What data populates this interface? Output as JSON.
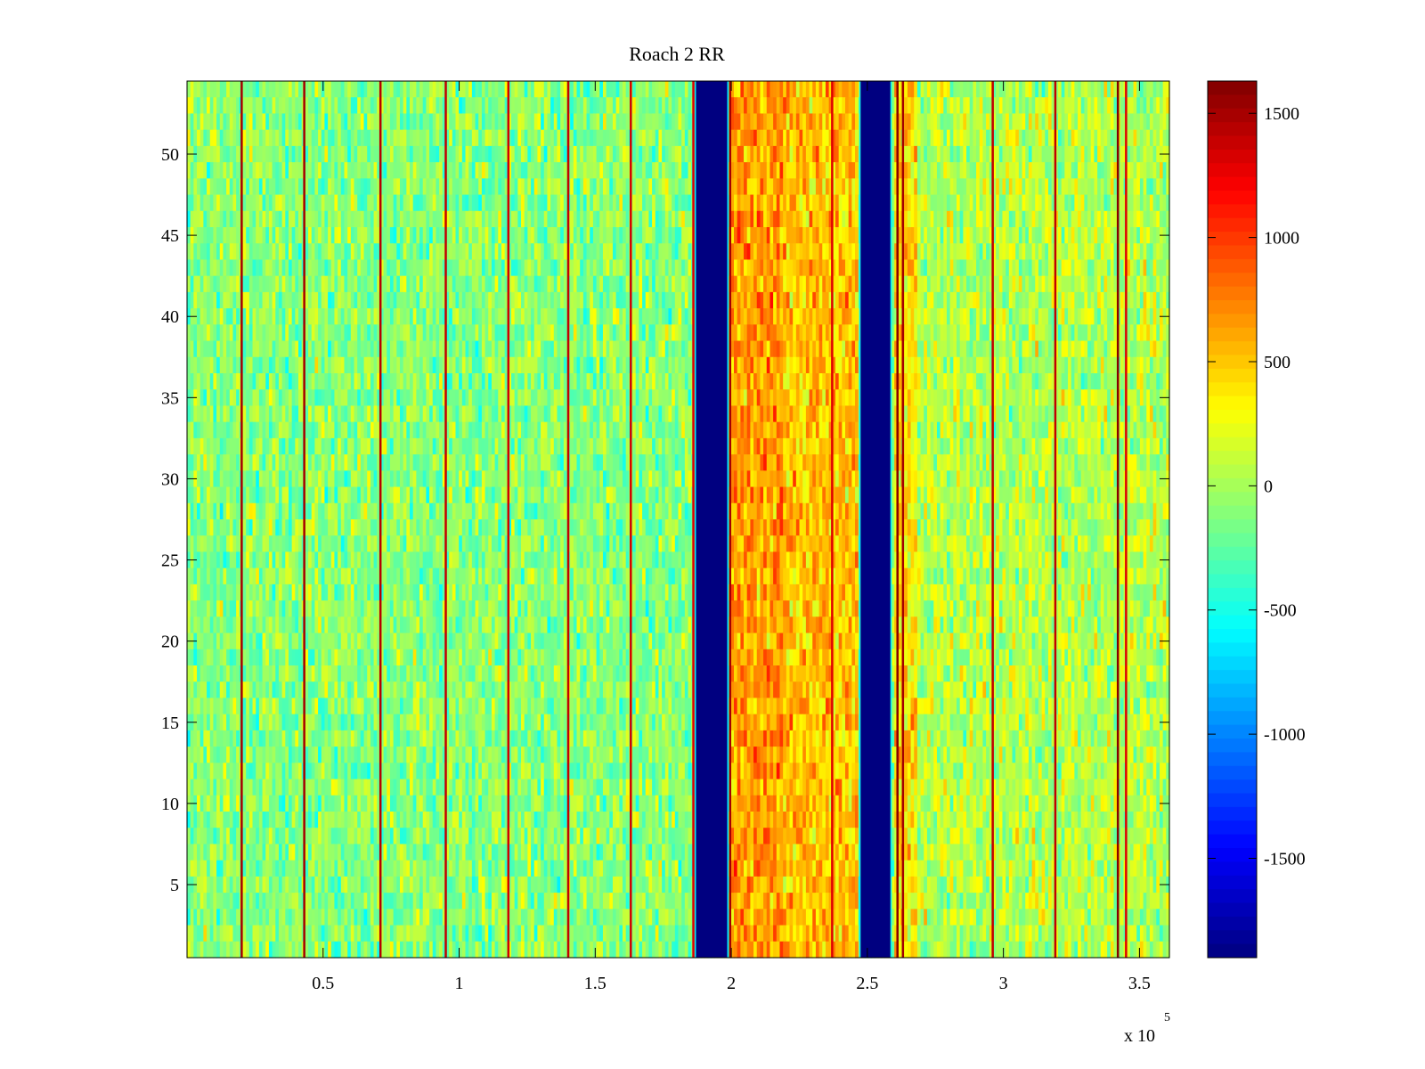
{
  "chart_data": {
    "type": "heatmap",
    "title": "Roach 2 RR",
    "xlabel": "",
    "ylabel": "",
    "x_range": [
      0,
      361000
    ],
    "y_range": [
      0.5,
      54.5
    ],
    "rows": 54,
    "x_ticks": [
      {
        "value": 50000,
        "label": "0.5"
      },
      {
        "value": 100000,
        "label": "1"
      },
      {
        "value": 150000,
        "label": "1.5"
      },
      {
        "value": 200000,
        "label": "2"
      },
      {
        "value": 250000,
        "label": "2.5"
      },
      {
        "value": 300000,
        "label": "3"
      },
      {
        "value": 350000,
        "label": "3.5"
      }
    ],
    "x_exponent": {
      "base": "x 10",
      "power": "5"
    },
    "y_ticks": [
      {
        "value": 5,
        "label": "5"
      },
      {
        "value": 10,
        "label": "10"
      },
      {
        "value": 15,
        "label": "15"
      },
      {
        "value": 20,
        "label": "20"
      },
      {
        "value": 25,
        "label": "25"
      },
      {
        "value": 30,
        "label": "30"
      },
      {
        "value": 35,
        "label": "35"
      },
      {
        "value": 40,
        "label": "40"
      },
      {
        "value": 45,
        "label": "45"
      },
      {
        "value": 50,
        "label": "50"
      }
    ],
    "colorbar": {
      "colormap": "jet",
      "range": [
        -1900,
        1630
      ],
      "ticks": [
        {
          "value": 1500,
          "label": "1500"
        },
        {
          "value": 1000,
          "label": "1000"
        },
        {
          "value": 500,
          "label": "500"
        },
        {
          "value": 0,
          "label": "0"
        },
        {
          "value": -500,
          "label": "-500"
        },
        {
          "value": -1000,
          "label": "-1000"
        },
        {
          "value": -1500,
          "label": "-1500"
        }
      ]
    },
    "background_level": {
      "mean": -100,
      "noise": 330
    },
    "regions": [
      {
        "x_start": 0,
        "x_end": 186000,
        "mean": -100
      },
      {
        "x_start": 200000,
        "x_end": 219000,
        "mean": 650
      },
      {
        "x_start": 219000,
        "x_end": 247000,
        "mean": 520
      },
      {
        "x_start": 260000,
        "x_end": 268000,
        "mean": 420
      },
      {
        "x_start": 268000,
        "x_end": 361000,
        "mean": 50
      }
    ],
    "masked_bands": [
      {
        "x_start": 187000,
        "x_end": 198500,
        "value": -1900
      },
      {
        "x_start": 247500,
        "x_end": 258500,
        "value": -1900
      }
    ],
    "bright_lines": [
      {
        "x": 20000,
        "value": 1500
      },
      {
        "x": 43000,
        "value": 1500
      },
      {
        "x": 71000,
        "value": 1450
      },
      {
        "x": 95000,
        "value": 1400
      },
      {
        "x": 118000,
        "value": 1350
      },
      {
        "x": 140000,
        "value": 1400
      },
      {
        "x": 163000,
        "value": 1350
      },
      {
        "x": 186000,
        "value": 1300
      },
      {
        "x": 199500,
        "value": 1500
      },
      {
        "x": 237000,
        "value": 1300
      },
      {
        "x": 261000,
        "value": 1600
      },
      {
        "x": 263000,
        "value": 1500
      },
      {
        "x": 296000,
        "value": 1400
      },
      {
        "x": 319000,
        "value": 1400
      },
      {
        "x": 342000,
        "value": 1600
      },
      {
        "x": 345000,
        "value": 1300
      }
    ],
    "colors": {
      "background": "#ffffff",
      "axes": "#000000",
      "band": "#00008f"
    }
  }
}
